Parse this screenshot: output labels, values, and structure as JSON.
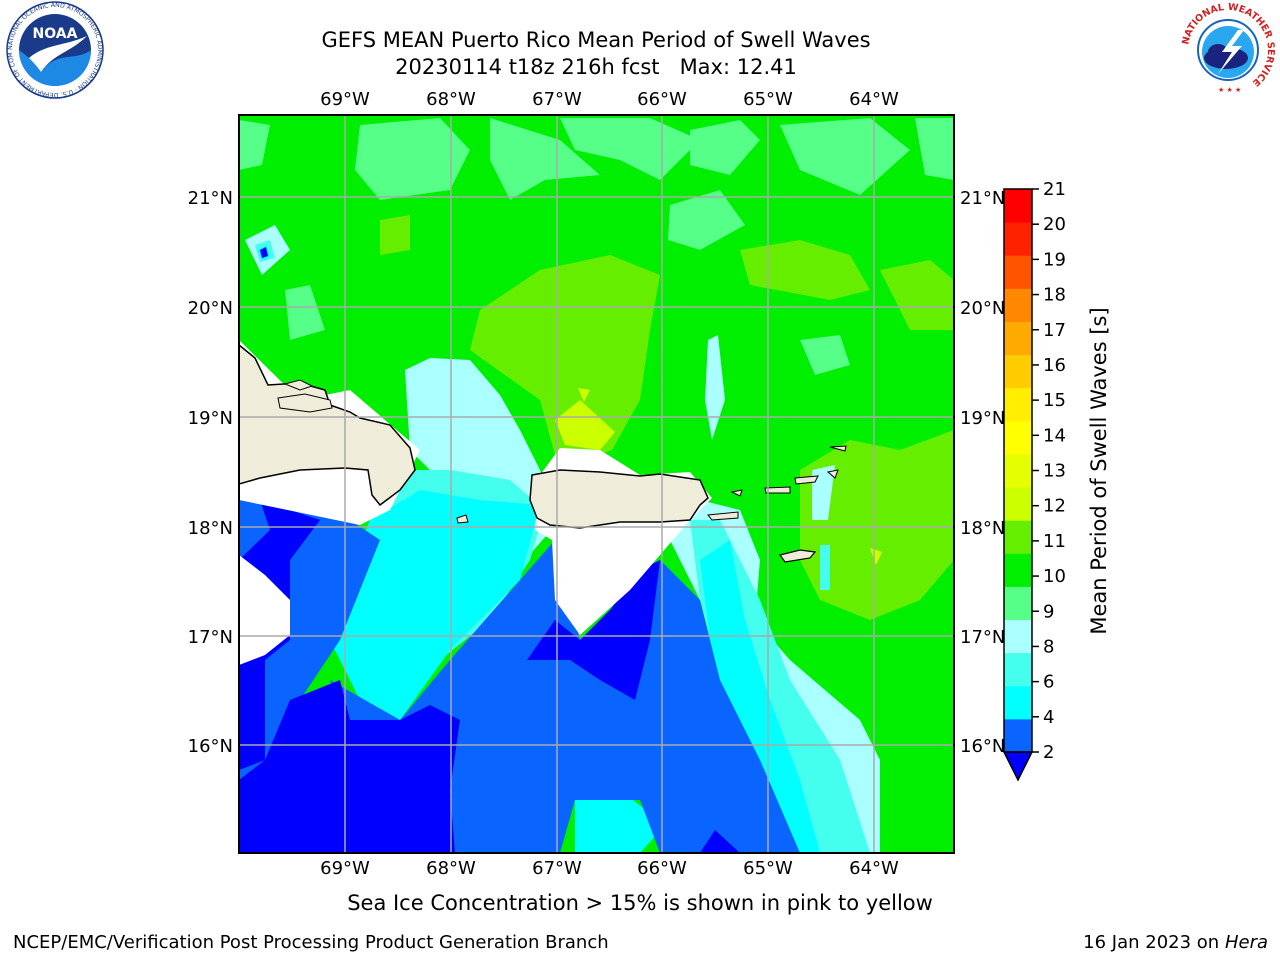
{
  "title": {
    "line1": "GEFS MEAN Puerto Rico Mean Period of Swell Waves",
    "line2": "20230114 t18z 216h fcst   Max: 12.41"
  },
  "logos": {
    "noaa_text": "NOAA",
    "noaa_ring": "NATIONAL OCEANIC AND ATMOSPHERIC ADMINISTRATION · U.S. DEPARTMENT OF COMMERCE ·",
    "nws_ring": "NATIONAL WEATHER SERVICE"
  },
  "map": {
    "lon_labels": [
      "69°W",
      "68°W",
      "67°W",
      "66°W",
      "65°W",
      "64°W"
    ],
    "lat_labels": [
      "21°N",
      "20°N",
      "19°N",
      "18°N",
      "17°N",
      "16°N"
    ],
    "land_color": "#efedda",
    "grid_color": "#aaaaaa"
  },
  "colorbar": {
    "label": "Mean Period of Swell Waves [s]",
    "ticks": [
      "2",
      "4",
      "6",
      "8",
      "9",
      "10",
      "11",
      "12",
      "13",
      "14",
      "15",
      "16",
      "17",
      "18",
      "19",
      "20",
      "21"
    ],
    "colors": [
      "#0a64ff",
      "#00ffff",
      "#44ffee",
      "#aaffff",
      "#55ff88",
      "#00ee00",
      "#66ee00",
      "#ccff00",
      "#e6ff00",
      "#ffff00",
      "#ffee00",
      "#ffcc00",
      "#ffaa00",
      "#ff8800",
      "#ff5500",
      "#ff2200",
      "#ff0000"
    ],
    "under_color": "#0000ff"
  },
  "caption": "Sea Ice Concentration > 15% is shown in pink to yellow",
  "footer": {
    "left": "NCEP/EMC/Verification Post Processing Product Generation Branch",
    "right_prefix": "16 Jan 2023 on ",
    "right_host": "Hera"
  }
}
